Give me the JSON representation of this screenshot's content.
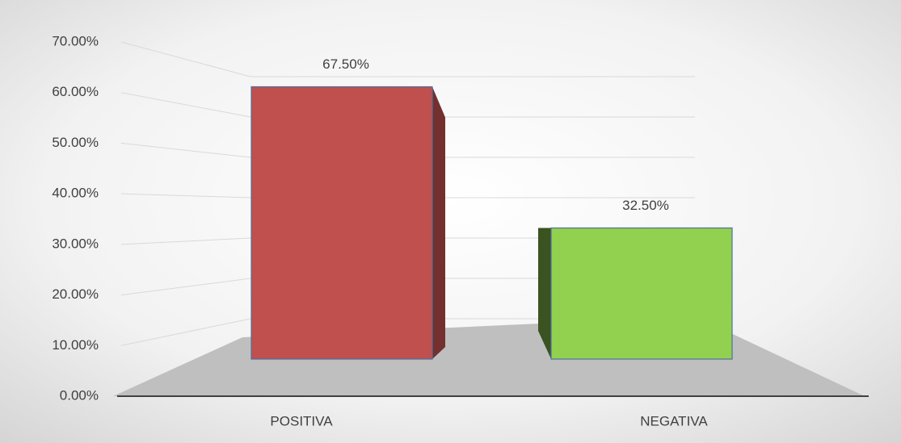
{
  "chart_data": {
    "type": "bar3d",
    "categories": [
      "POSITIVA",
      "NEGATIVA"
    ],
    "values": [
      67.5,
      32.5
    ],
    "value_labels": [
      "67.50%",
      "32.50%"
    ],
    "colors": [
      "#c0504d",
      "#92d050"
    ],
    "ylim": [
      0,
      70
    ],
    "yticks": [
      {
        "value": 0,
        "label": "0.00%"
      },
      {
        "value": 10,
        "label": "10.00%"
      },
      {
        "value": 20,
        "label": "20.00%"
      },
      {
        "value": 30,
        "label": "30.00%"
      },
      {
        "value": 40,
        "label": "40.00%"
      },
      {
        "value": 50,
        "label": "50.00%"
      },
      {
        "value": 60,
        "label": "60.00%"
      },
      {
        "value": 70,
        "label": "70.00%"
      }
    ],
    "grid": true
  }
}
